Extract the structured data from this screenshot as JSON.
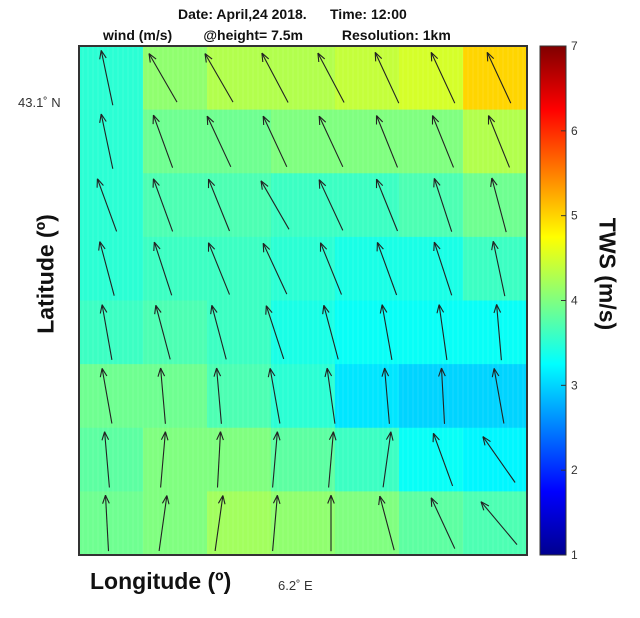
{
  "header": {
    "date_text": "Date: April,24 2018.",
    "time_text": "Time: 12:00",
    "wind_text": "wind (m/s)",
    "height_text": "@height= 7.5m",
    "resolution_text": "Resolution: 1km"
  },
  "axes": {
    "xlabel": "Longitude (º)",
    "ylabel": "Latitude (º)",
    "lat_tick_label": "43.1˚ N",
    "lon_tick_label": "6.2˚ E"
  },
  "colorbar": {
    "label": "TWS (m/s)",
    "min": 1,
    "max": 7,
    "ticks": [
      "1",
      "2",
      "3",
      "4",
      "5",
      "6",
      "7"
    ],
    "colormap": "jet"
  },
  "chart_data": {
    "type": "heatmap",
    "variable": "TWS",
    "units": "m/s",
    "grid_columns": 7,
    "grid_rows": 8,
    "tws": [
      [
        3.5,
        4.1,
        4.3,
        4.3,
        4.4,
        4.5,
        5.0
      ],
      [
        3.5,
        3.9,
        3.9,
        4.0,
        4.0,
        4.0,
        4.3
      ],
      [
        3.5,
        3.7,
        3.7,
        3.6,
        3.6,
        3.7,
        3.9
      ],
      [
        3.5,
        3.6,
        3.6,
        3.5,
        3.4,
        3.4,
        3.6
      ],
      [
        3.6,
        3.7,
        3.6,
        3.4,
        3.3,
        3.3,
        3.3
      ],
      [
        3.9,
        3.9,
        3.7,
        3.5,
        3.1,
        3.0,
        3.0
      ],
      [
        3.8,
        4.0,
        4.0,
        3.8,
        3.6,
        3.3,
        3.2
      ],
      [
        3.9,
        4.0,
        4.2,
        4.1,
        4.0,
        3.8,
        3.7
      ]
    ],
    "arrows_columns": 8,
    "arrows_rows": 8,
    "arrow_direction_deg": [
      [
        -12,
        -30,
        -30,
        -28,
        -28,
        -25,
        -25,
        -25
      ],
      [
        -12,
        -20,
        -25,
        -25,
        -25,
        -22,
        -22,
        -22
      ],
      [
        -20,
        -20,
        -22,
        -30,
        -25,
        -22,
        -18,
        -15
      ],
      [
        -15,
        -18,
        -22,
        -25,
        -22,
        -20,
        -18,
        -12
      ],
      [
        -10,
        -15,
        -15,
        -18,
        -15,
        -10,
        -8,
        -5
      ],
      [
        -10,
        -5,
        -5,
        -10,
        -8,
        -5,
        -3,
        -10
      ],
      [
        -5,
        5,
        3,
        5,
        5,
        8,
        -20,
        -35
      ],
      [
        -3,
        8,
        8,
        5,
        0,
        -15,
        -25,
        -40
      ]
    ]
  }
}
